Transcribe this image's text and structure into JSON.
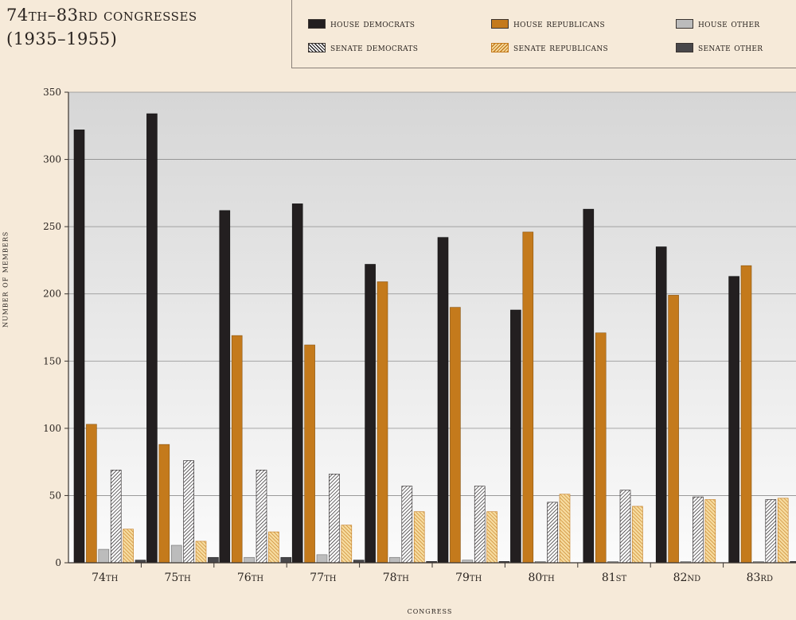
{
  "title_lines": [
    "74th–83rd congresses",
    "(1935–1955)"
  ],
  "legend": [
    {
      "label": "house democrats",
      "series": "house_dem"
    },
    {
      "label": "house republicans",
      "series": "house_rep"
    },
    {
      "label": "house other",
      "series": "house_oth"
    },
    {
      "label": "senate democrats",
      "series": "senate_dem"
    },
    {
      "label": "senate republicans",
      "series": "senate_rep"
    },
    {
      "label": "senate other",
      "series": "senate_oth"
    }
  ],
  "colors": {
    "house_dem": "#231f20",
    "house_rep": "#c47a1c",
    "house_oth": "#bcbcbc",
    "senate_dem": "#ffffff",
    "senate_rep": "#f6dca0",
    "senate_oth": "#48474a",
    "background": "#f6ead9"
  },
  "chart_data": {
    "type": "bar",
    "title": "74th–83rd congresses (1935–1955)",
    "xlabel": "congress",
    "ylabel": "number of members",
    "ylim": [
      0,
      350
    ],
    "yticks": [
      0,
      50,
      100,
      150,
      200,
      250,
      300,
      350
    ],
    "grid": true,
    "legend_position": "top-right",
    "categories": [
      "74th",
      "75th",
      "76th",
      "77th",
      "78th",
      "79th",
      "80th",
      "81st",
      "82nd",
      "83rd"
    ],
    "series": [
      {
        "name": "house democrats",
        "values": [
          322,
          334,
          262,
          267,
          222,
          242,
          188,
          263,
          235,
          213
        ]
      },
      {
        "name": "house republicans",
        "values": [
          103,
          88,
          169,
          162,
          209,
          190,
          246,
          171,
          199,
          221
        ]
      },
      {
        "name": "house other",
        "values": [
          10,
          13,
          4,
          6,
          4,
          2,
          1,
          1,
          1,
          1
        ]
      },
      {
        "name": "senate democrats",
        "values": [
          69,
          76,
          69,
          66,
          57,
          57,
          45,
          54,
          49,
          47
        ]
      },
      {
        "name": "senate republicans",
        "values": [
          25,
          16,
          23,
          28,
          38,
          38,
          51,
          42,
          47,
          48
        ]
      },
      {
        "name": "senate other",
        "values": [
          2,
          4,
          4,
          2,
          1,
          1,
          0,
          0,
          0,
          1
        ]
      }
    ]
  }
}
